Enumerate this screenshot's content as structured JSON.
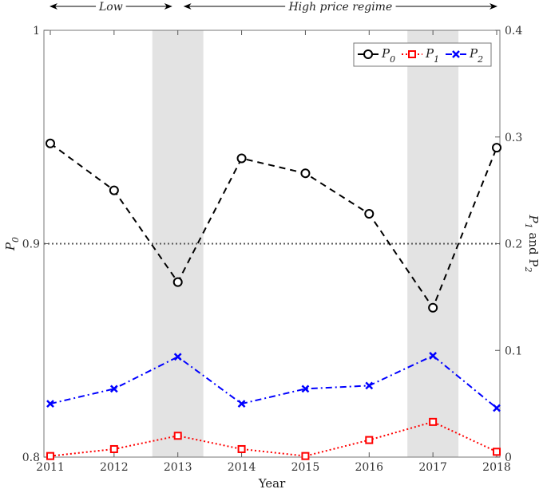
{
  "chart_data": {
    "type": "line",
    "xlabel": "Year",
    "ylabel_left": "P_0",
    "ylabel_right": "P_1 and P_2",
    "ylabel_left_main": "P",
    "ylabel_left_sub": "0",
    "ylabel_right_parts": [
      "P",
      "1",
      " and P",
      "2"
    ],
    "x": [
      2011,
      2012,
      2013,
      2014,
      2015,
      2016,
      2017,
      2018
    ],
    "xlim": [
      2010.9,
      2018.05
    ],
    "ylim_left": [
      0.8,
      1.0
    ],
    "ylim_right": [
      0,
      0.4
    ],
    "xticks": [
      "2011",
      "2012",
      "2013",
      "2014",
      "2015",
      "2016",
      "2017",
      "2018"
    ],
    "yticks_left": [
      "0.8",
      "0.9",
      "1"
    ],
    "yticks_right": [
      "0",
      "0.1",
      "0.2",
      "0.3",
      "0.4"
    ],
    "reference_line": {
      "axis": "left",
      "value": 0.9,
      "style": "dotted",
      "color": "#555555"
    },
    "shaded_regions": [
      [
        2012.6,
        2013.4
      ],
      [
        2016.6,
        2017.4
      ]
    ],
    "annotations": [
      {
        "text": "Low",
        "from": 2011,
        "to": 2013
      },
      {
        "text": "High price regime",
        "from": 2013,
        "to": 2018
      }
    ],
    "series": [
      {
        "name": "P_0",
        "label_main": "P",
        "label_sub": "0",
        "axis": "left",
        "color": "#000000",
        "marker": "circle",
        "dash": "8,6",
        "values": [
          0.947,
          0.925,
          0.882,
          0.94,
          0.933,
          0.914,
          0.87,
          0.945
        ]
      },
      {
        "name": "P_1",
        "label_main": "P",
        "label_sub": "1",
        "axis": "right",
        "color": "#ff0000",
        "marker": "square",
        "dash": "2,3",
        "values": [
          0.001,
          0.0075,
          0.02,
          0.0075,
          0.001,
          0.016,
          0.033,
          0.005
        ]
      },
      {
        "name": "P_2",
        "label_main": "P",
        "label_sub": "2",
        "axis": "right",
        "color": "#0000ff",
        "marker": "x",
        "dash": "8,4,2,4",
        "values": [
          0.05,
          0.064,
          0.094,
          0.05,
          0.064,
          0.067,
          0.095,
          0.046
        ]
      }
    ],
    "legend": "top-right",
    "grid": false
  }
}
